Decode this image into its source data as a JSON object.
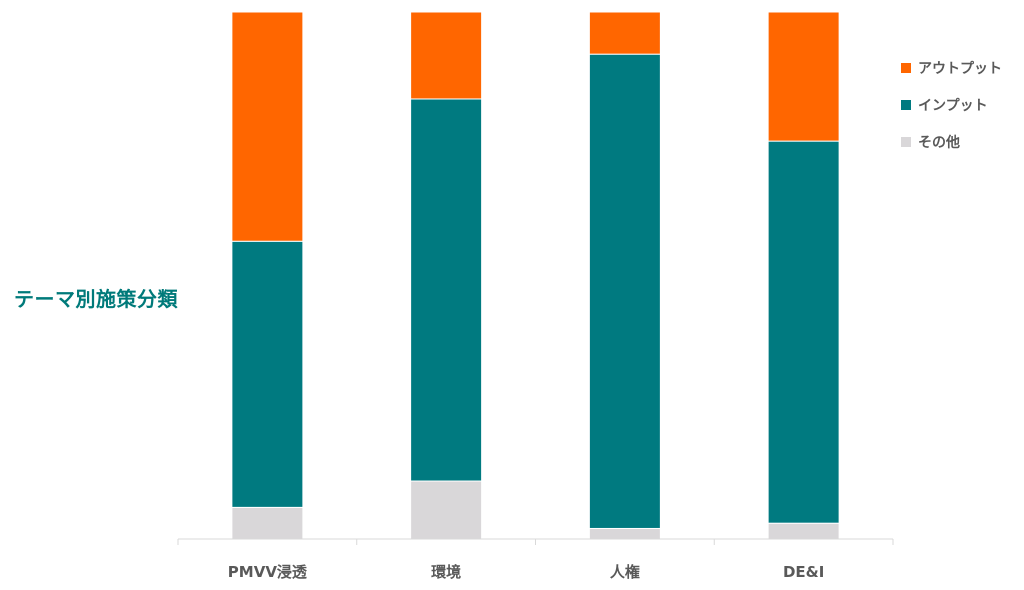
{
  "chart_data": {
    "type": "bar",
    "stacked": true,
    "normalized": true,
    "title": "テーマ別施策分類",
    "categories": [
      "PMVV浸透",
      "環境",
      "人権",
      "DE&I"
    ],
    "series": [
      {
        "name": "その他",
        "color": "#d9d7d9",
        "values": [
          6,
          11,
          2,
          3
        ]
      },
      {
        "name": "インプット",
        "color": "#007a80",
        "values": [
          50.5,
          72.5,
          90,
          72.5
        ]
      },
      {
        "name": "アウトプット",
        "color": "#ff6600",
        "values": [
          43.5,
          16.5,
          8,
          24.5
        ]
      }
    ],
    "ylim": [
      0,
      100
    ],
    "legend_position": "top-right",
    "legend_order": [
      "アウトプット",
      "インプット",
      "その他"
    ],
    "grid": false
  }
}
